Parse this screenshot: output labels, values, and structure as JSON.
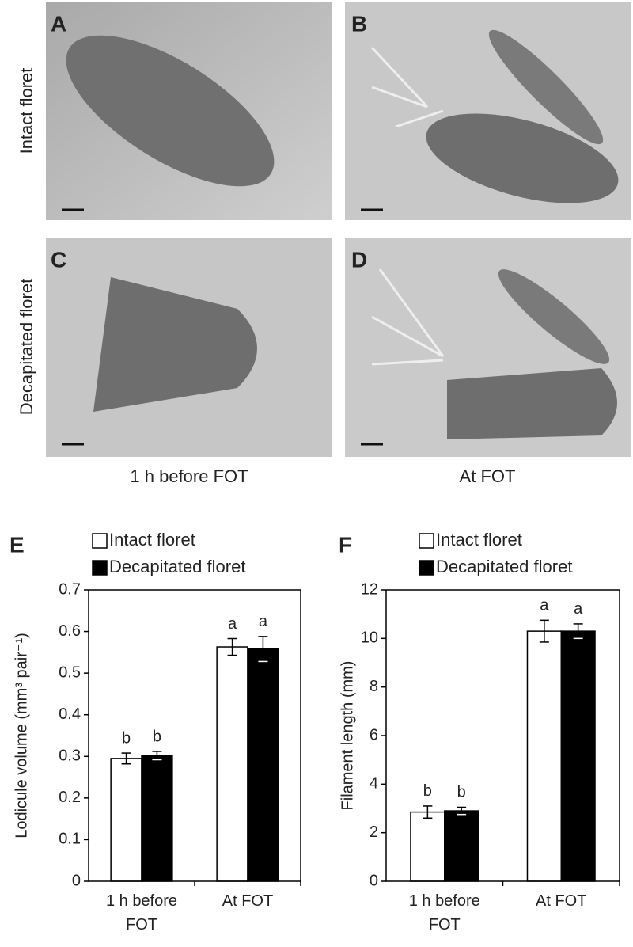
{
  "photos": {
    "panels": [
      "A",
      "B",
      "C",
      "D"
    ],
    "row_labels": [
      "Intact floret",
      "Decapitated floret"
    ],
    "column_labels": [
      "1 h before FOT",
      "At FOT"
    ]
  },
  "chart_data": [
    {
      "type": "bar",
      "panel": "E",
      "ylabel": "Lodicule volume (mm³ pair⁻¹)",
      "categories": [
        "1 h before FOT",
        "At FOT"
      ],
      "series": [
        {
          "name": "Intact floret",
          "color": "#ffffff",
          "values": [
            0.295,
            0.563
          ],
          "errors": [
            0.013,
            0.02
          ],
          "letters": [
            "b",
            "a"
          ]
        },
        {
          "name": "Decapitated floret",
          "color": "#000000",
          "values": [
            0.302,
            0.558
          ],
          "errors": [
            0.01,
            0.03
          ],
          "letters": [
            "b",
            "a"
          ]
        }
      ],
      "ylim": [
        0,
        0.7
      ],
      "yticks": [
        0,
        0.1,
        0.2,
        0.3,
        0.4,
        0.5,
        0.6,
        0.7
      ],
      "grid": false
    },
    {
      "type": "bar",
      "panel": "F",
      "ylabel": "Filament length (mm)",
      "categories": [
        "1 h before FOT",
        "At FOT"
      ],
      "series": [
        {
          "name": "Intact floret",
          "color": "#ffffff",
          "values": [
            2.85,
            10.3
          ],
          "errors": [
            0.25,
            0.45
          ],
          "letters": [
            "b",
            "a"
          ]
        },
        {
          "name": "Decapitated floret",
          "color": "#000000",
          "values": [
            2.9,
            10.3
          ],
          "errors": [
            0.15,
            0.3
          ],
          "letters": [
            "b",
            "a"
          ]
        }
      ],
      "ylim": [
        0,
        12
      ],
      "yticks": [
        0,
        2,
        4,
        6,
        8,
        10,
        12
      ],
      "grid": false
    }
  ]
}
